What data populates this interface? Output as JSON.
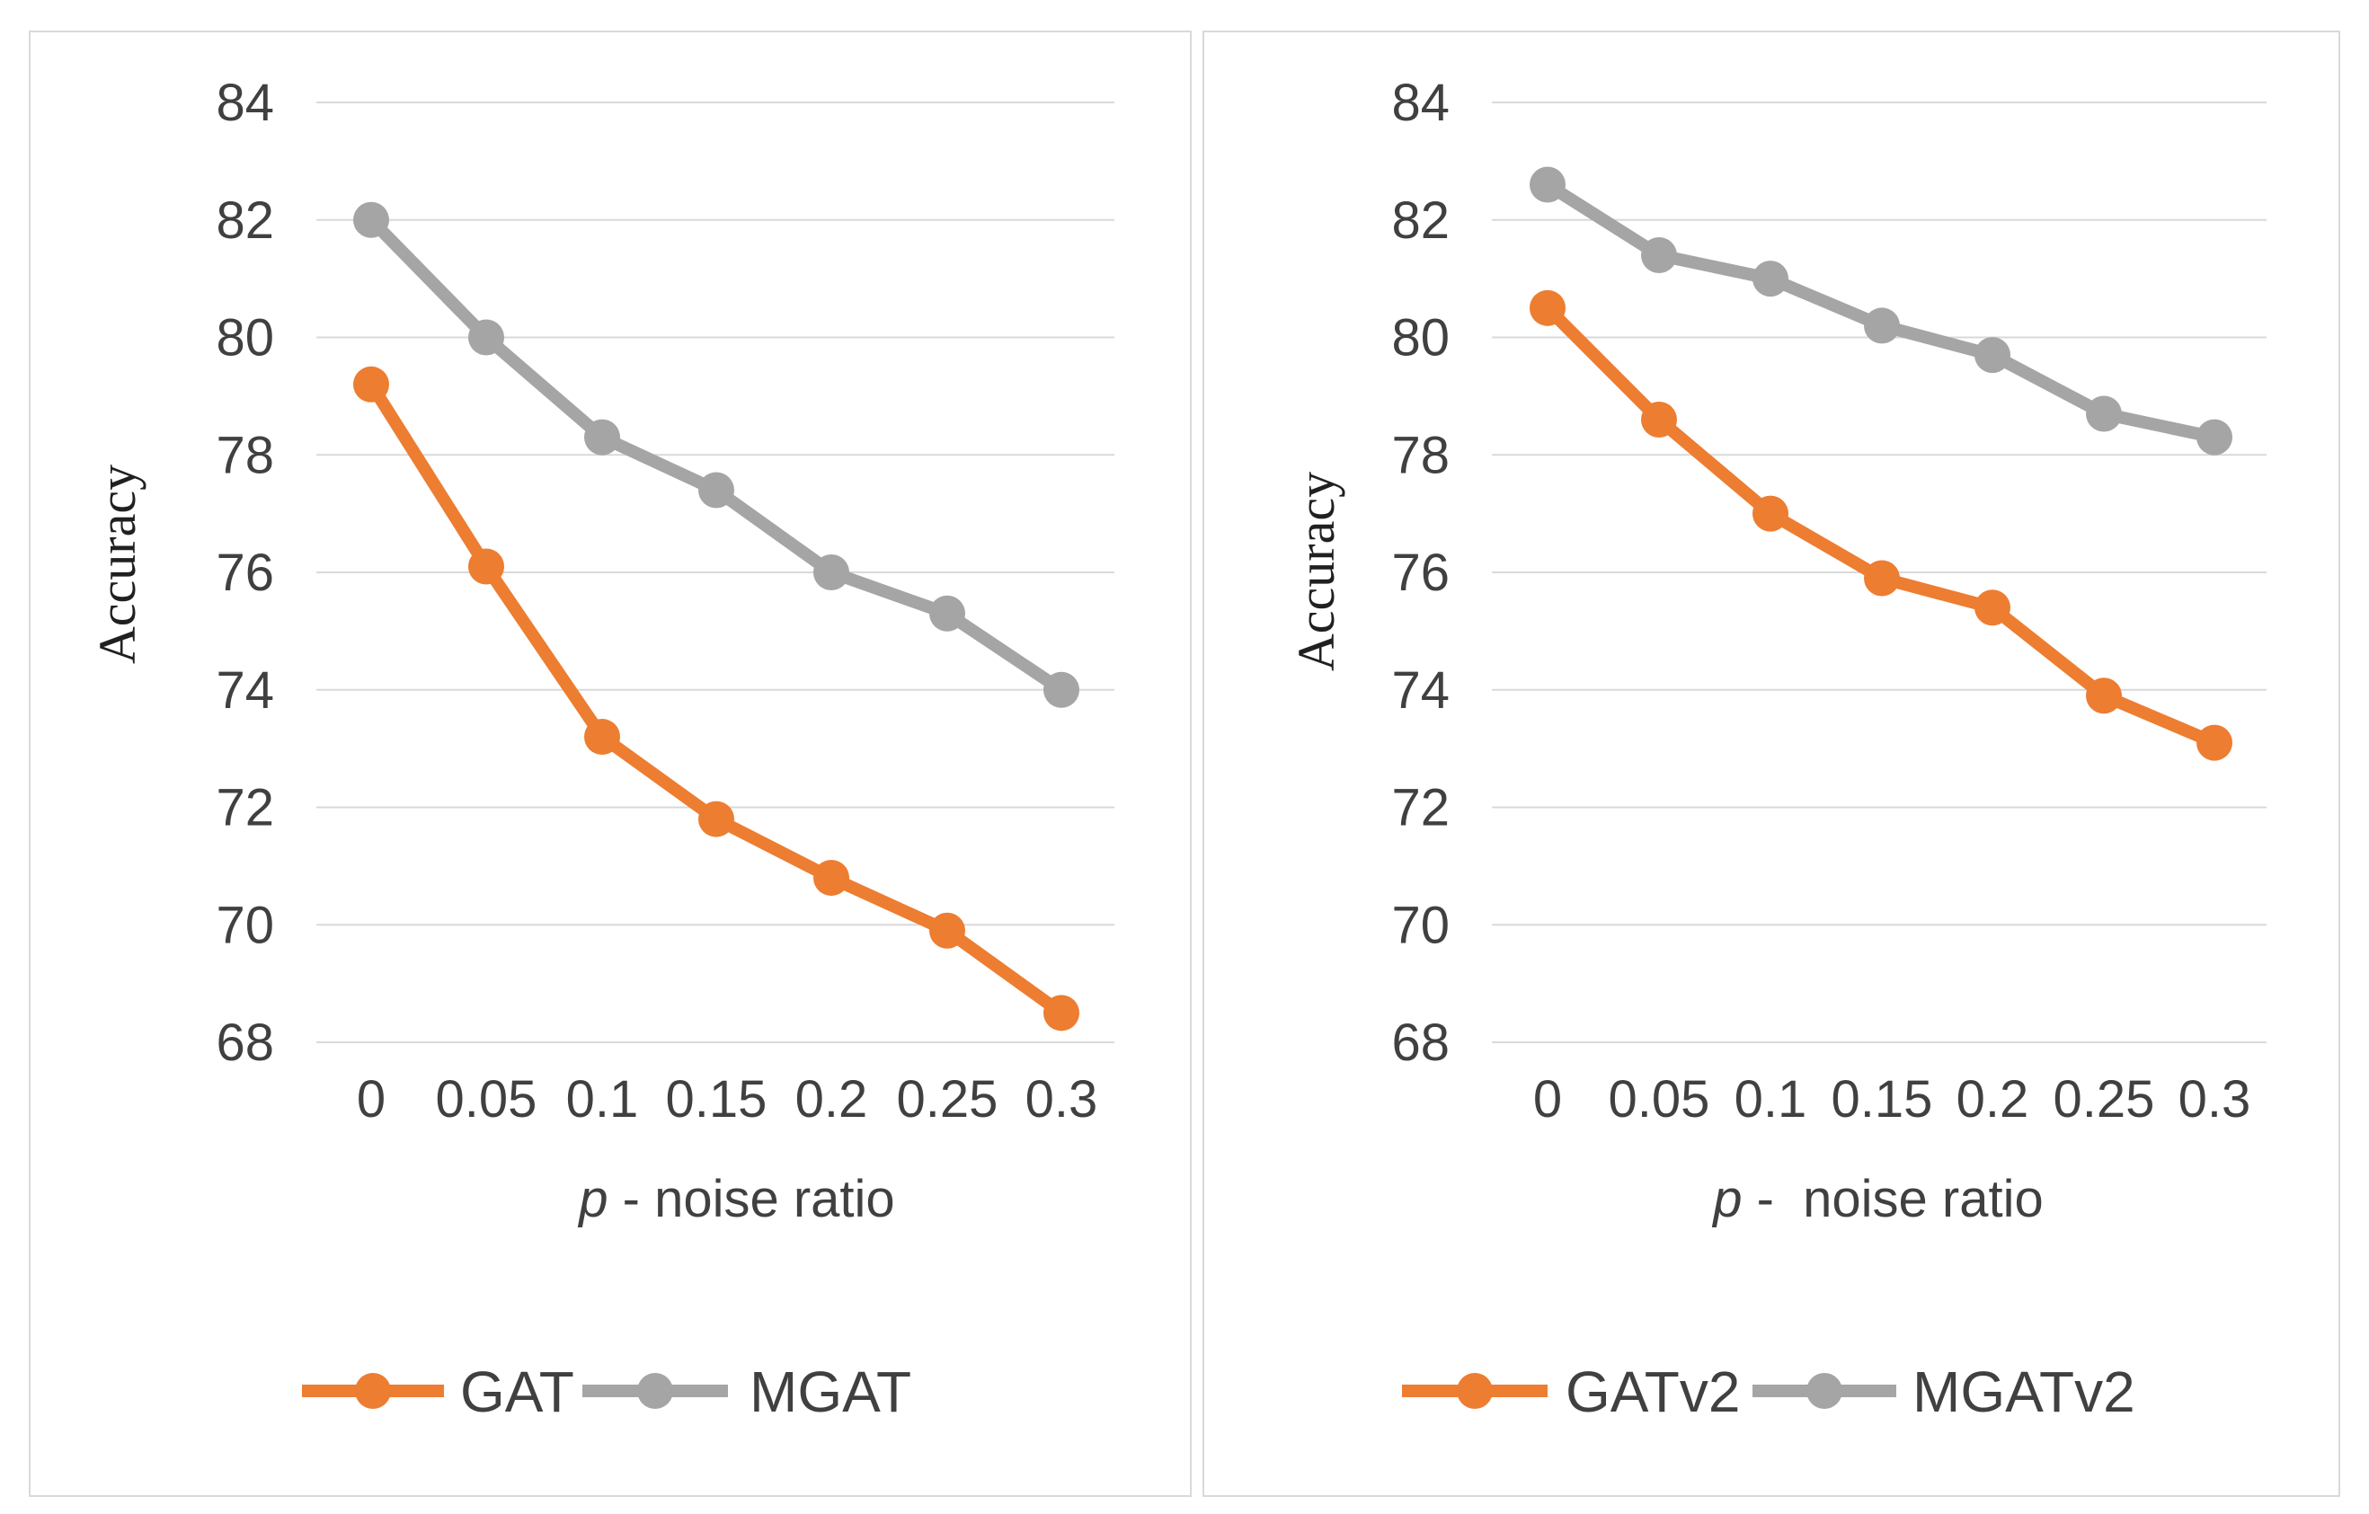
{
  "chart_data": [
    {
      "type": "line",
      "title": "",
      "xlabel_italic": "p",
      "xlabel_rest": " - noise ratio",
      "ylabel": "Accuracy",
      "categories": [
        "0",
        "0.05",
        "0.1",
        "0.15",
        "0.2",
        "0.25",
        "0.3"
      ],
      "yticks": [
        "84",
        "82",
        "80",
        "78",
        "76",
        "74",
        "72",
        "70",
        "68"
      ],
      "ylim": [
        68,
        84
      ],
      "grid": true,
      "legend": "bottom",
      "series": [
        {
          "name": "GAT",
          "color": "#ed7d31",
          "values": [
            79.2,
            76.1,
            73.2,
            71.8,
            70.8,
            69.9,
            68.5
          ]
        },
        {
          "name": "MGAT",
          "color": "#a5a5a5",
          "values": [
            82.0,
            80.0,
            78.3,
            77.4,
            76.0,
            75.3,
            74.0
          ]
        }
      ]
    },
    {
      "type": "line",
      "title": "",
      "xlabel_italic": "p",
      "xlabel_rest": " -  noise ratio",
      "ylabel": "Accuracy",
      "categories": [
        "0",
        "0.05",
        "0.1",
        "0.15",
        "0.2",
        "0.25",
        "0.3"
      ],
      "yticks": [
        "84",
        "82",
        "80",
        "78",
        "76",
        "74",
        "72",
        "70",
        "68"
      ],
      "ylim": [
        68,
        84
      ],
      "grid": true,
      "legend": "bottom",
      "series": [
        {
          "name": "GATv2",
          "color": "#ed7d31",
          "values": [
            80.5,
            78.6,
            77.0,
            75.9,
            75.4,
            73.9,
            73.1
          ]
        },
        {
          "name": "MGATv2",
          "color": "#a5a5a5",
          "values": [
            82.6,
            81.4,
            81.0,
            80.2,
            79.7,
            78.7,
            78.3
          ]
        }
      ]
    }
  ]
}
